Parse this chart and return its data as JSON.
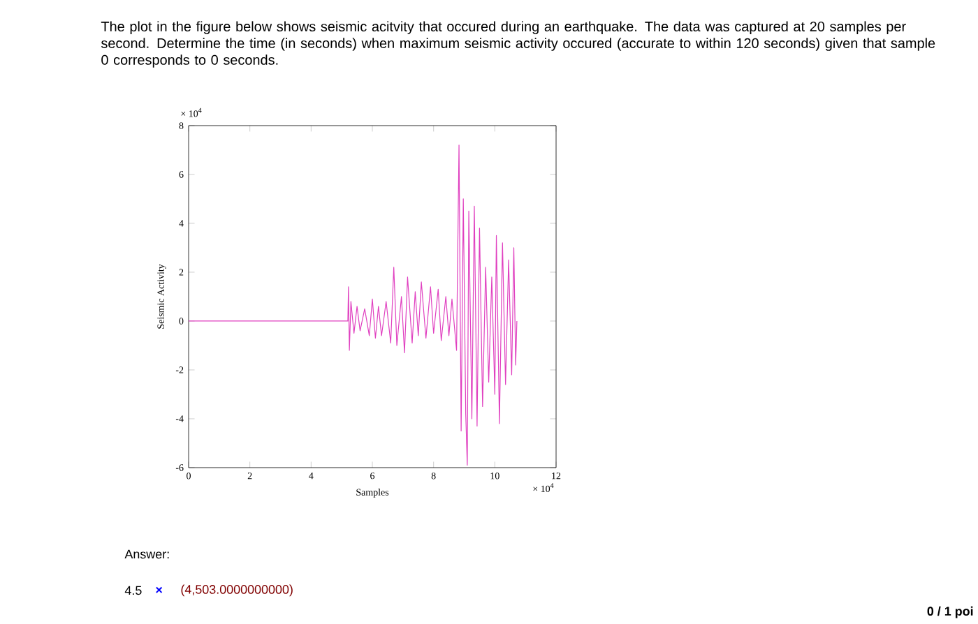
{
  "chart_data": {
    "type": "line",
    "title": "The plot in the figure below shows seismic acitvity that occured during an earthquake. The data was captured at 20 samples per second. Determine the time (in seconds) when maximum seismic activity occured (accurate to within 120 seconds) given that sample 0 corresponds to 0 seconds.",
    "xlabel": "Samples",
    "ylabel": "Seismic Activity",
    "annotations": [
      "× 10$^{4}$",
      "× 10$^{4}$",
      "Answer:",
      "4.5",
      "×",
      "(4,503.0000000000)",
      "0 / 1 poi"
    ],
    "xlim": [
      0,
      12
    ],
    "ylim": [
      -6,
      8
    ],
    "xticks": [
      0,
      2,
      4,
      6,
      8,
      10,
      12
    ],
    "yticks": [
      -6,
      -4,
      -2,
      0,
      2,
      4,
      6,
      8
    ],
    "x": [
      0,
      5.2,
      5.22,
      5.25,
      5.3,
      5.4,
      5.5,
      5.6,
      5.75,
      5.9,
      6.0,
      6.1,
      6.2,
      6.3,
      6.45,
      6.6,
      6.7,
      6.8,
      6.95,
      7.05,
      7.15,
      7.3,
      7.4,
      7.5,
      7.6,
      7.75,
      7.9,
      8.0,
      8.15,
      8.25,
      8.4,
      8.5,
      8.6,
      8.75,
      8.83,
      8.9,
      8.97,
      9.05,
      9.1,
      9.15,
      9.25,
      9.33,
      9.42,
      9.5,
      9.6,
      9.7,
      9.8,
      9.9,
      10.0,
      10.05,
      10.15,
      10.25,
      10.35,
      10.45,
      10.55,
      10.62,
      10.68,
      10.72
    ],
    "series": [
      {
        "color": "#e040c0",
        "values": [
          0,
          0,
          1.4,
          -1.2,
          0.8,
          -0.5,
          0.6,
          -0.4,
          0.5,
          -0.6,
          0.9,
          -0.7,
          0.6,
          -0.6,
          0.8,
          -0.9,
          2.2,
          -1.0,
          1.0,
          -1.3,
          1.8,
          -0.9,
          1.2,
          -0.6,
          1.6,
          -0.7,
          1.4,
          -0.5,
          1.3,
          -0.8,
          1.0,
          -0.6,
          0.9,
          -1.2,
          7.2,
          -4.5,
          5.0,
          -3.8,
          -5.9,
          4.5,
          -4.0,
          4.7,
          -4.3,
          3.8,
          -3.5,
          2.2,
          -2.5,
          1.8,
          -3.0,
          3.5,
          -4.2,
          3.2,
          -2.6,
          2.5,
          -2.2,
          3.0,
          -1.8,
          0
        ]
      }
    ]
  }
}
